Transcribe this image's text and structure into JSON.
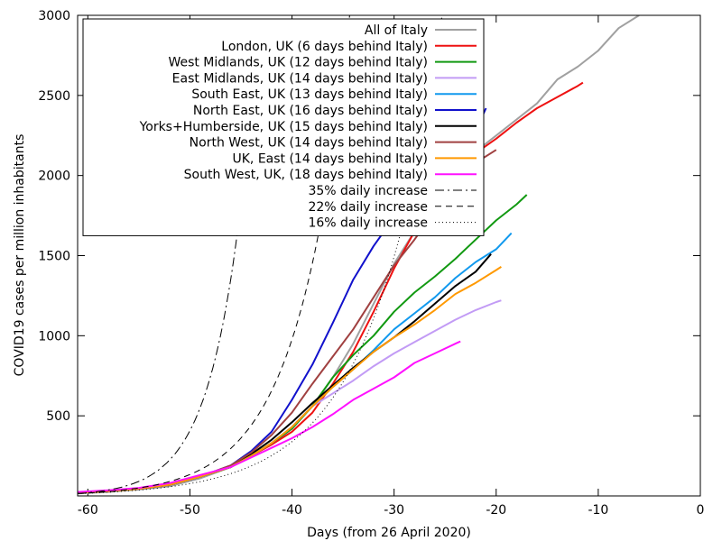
{
  "chart_data": {
    "type": "line",
    "title": "",
    "xlabel": "Days (from 26 April 2020)",
    "ylabel": "COVID19 cases per million inhabitants",
    "xlim": [
      -61,
      0
    ],
    "ylim": [
      0,
      3000
    ],
    "xticks": [
      -60,
      -50,
      -40,
      -30,
      -20,
      -10,
      0
    ],
    "yticks": [
      500,
      1000,
      1500,
      2000,
      2500,
      3000
    ],
    "grid": false,
    "legend_position": "top-left",
    "series": [
      {
        "name": "All of Italy",
        "color": "#a0a0a0",
        "dash": "solid",
        "x": [
          -61,
          -58,
          -55,
          -52,
          -49,
          -46,
          -44,
          -42,
          -40,
          -38,
          -36,
          -34,
          -32,
          -30,
          -28,
          -26,
          -24,
          -22,
          -20,
          -18,
          -16,
          -14,
          -12,
          -10,
          -8,
          -6
        ],
        "y": [
          15,
          25,
          40,
          60,
          110,
          180,
          250,
          320,
          420,
          560,
          740,
          950,
          1200,
          1450,
          1650,
          1850,
          2000,
          2150,
          2250,
          2350,
          2450,
          2600,
          2680,
          2780,
          2920,
          3000
        ]
      },
      {
        "name": "London, UK (6 days behind Italy)",
        "color": "#ee1111",
        "dash": "solid",
        "x": [
          -61,
          -58,
          -55,
          -52,
          -49,
          -46,
          -44,
          -42,
          -40,
          -38,
          -36,
          -34,
          -32,
          -30,
          -28,
          -26,
          -24,
          -22,
          -20,
          -18,
          -16,
          -14,
          -12,
          -11.5
        ],
        "y": [
          20,
          30,
          45,
          70,
          120,
          180,
          250,
          320,
          400,
          520,
          700,
          900,
          1150,
          1420,
          1650,
          1860,
          2020,
          2140,
          2230,
          2330,
          2420,
          2490,
          2560,
          2580
        ]
      },
      {
        "name": "West Midlands, UK (12 days behind Italy)",
        "color": "#119911",
        "dash": "solid",
        "x": [
          -61,
          -58,
          -55,
          -52,
          -49,
          -46,
          -44,
          -42,
          -40,
          -38,
          -36,
          -34,
          -32,
          -30,
          -28,
          -26,
          -24,
          -22,
          -20,
          -18,
          -17
        ],
        "y": [
          20,
          30,
          45,
          70,
          120,
          180,
          250,
          330,
          420,
          560,
          740,
          880,
          1000,
          1150,
          1270,
          1370,
          1480,
          1600,
          1720,
          1820,
          1880
        ]
      },
      {
        "name": "East Midlands, UK (14 days behind Italy)",
        "color": "#c29bf5",
        "dash": "solid",
        "x": [
          -61,
          -58,
          -55,
          -52,
          -49,
          -46,
          -44,
          -42,
          -40,
          -38,
          -36,
          -34,
          -32,
          -30,
          -28,
          -26,
          -24,
          -22,
          -20,
          -19.5
        ],
        "y": [
          20,
          30,
          45,
          70,
          120,
          180,
          250,
          330,
          430,
          560,
          640,
          720,
          810,
          890,
          960,
          1030,
          1100,
          1160,
          1210,
          1220
        ]
      },
      {
        "name": "South East, UK (13 days behind Italy)",
        "color": "#1199ee",
        "dash": "solid",
        "x": [
          -61,
          -58,
          -55,
          -52,
          -49,
          -46,
          -44,
          -42,
          -40,
          -38,
          -36,
          -34,
          -32,
          -30,
          -28,
          -26,
          -24,
          -22,
          -20,
          -18.5
        ],
        "y": [
          20,
          30,
          45,
          70,
          120,
          180,
          250,
          330,
          430,
          560,
          680,
          790,
          910,
          1040,
          1140,
          1240,
          1360,
          1460,
          1540,
          1640
        ]
      },
      {
        "name": "North East, UK (16 days behind Italy)",
        "color": "#1111cc",
        "dash": "solid",
        "x": [
          -61,
          -58,
          -55,
          -52,
          -49,
          -46,
          -44,
          -42,
          -40,
          -38,
          -36,
          -34,
          -32,
          -30,
          -28,
          -26,
          -24,
          -22,
          -21
        ],
        "y": [
          20,
          30,
          45,
          70,
          120,
          190,
          280,
          400,
          600,
          820,
          1080,
          1350,
          1560,
          1740,
          1880,
          2000,
          2140,
          2280,
          2420
        ]
      },
      {
        "name": "Yorks+Humberside, UK (15 days behind Italy)",
        "color": "#000000",
        "dash": "solid",
        "x": [
          -61,
          -58,
          -55,
          -52,
          -49,
          -46,
          -44,
          -42,
          -40,
          -38,
          -36,
          -34,
          -32,
          -30,
          -28,
          -26,
          -24,
          -22,
          -20.5
        ],
        "y": [
          20,
          30,
          45,
          70,
          120,
          180,
          260,
          350,
          460,
          580,
          690,
          800,
          900,
          990,
          1090,
          1200,
          1310,
          1400,
          1510
        ]
      },
      {
        "name": "North West, UK (14 days behind Italy)",
        "color": "#a04040",
        "dash": "solid",
        "x": [
          -61,
          -58,
          -55,
          -52,
          -49,
          -46,
          -44,
          -42,
          -40,
          -38,
          -36,
          -34,
          -32,
          -30,
          -28,
          -26,
          -24,
          -22,
          -20
        ],
        "y": [
          20,
          30,
          45,
          70,
          120,
          190,
          270,
          380,
          520,
          700,
          870,
          1040,
          1240,
          1440,
          1600,
          1780,
          1950,
          2080,
          2160
        ]
      },
      {
        "name": "UK, East (14 days behind Italy)",
        "color": "#ff9900",
        "dash": "solid",
        "x": [
          -61,
          -58,
          -55,
          -52,
          -49,
          -46,
          -44,
          -42,
          -40,
          -38,
          -36,
          -34,
          -32,
          -30,
          -28,
          -26,
          -24,
          -22,
          -20,
          -19.5
        ],
        "y": [
          20,
          30,
          45,
          70,
          120,
          180,
          250,
          330,
          430,
          560,
          680,
          790,
          900,
          990,
          1070,
          1160,
          1260,
          1330,
          1410,
          1430
        ]
      },
      {
        "name": "South West, UK, (18 days behind Italy)",
        "color": "#ff11ff",
        "dash": "solid",
        "x": [
          -61,
          -58,
          -55,
          -52,
          -49,
          -46,
          -44,
          -42,
          -40,
          -38,
          -36,
          -34,
          -32,
          -30,
          -28,
          -26,
          -24,
          -23.5
        ],
        "y": [
          25,
          35,
          50,
          80,
          130,
          180,
          240,
          300,
          360,
          430,
          510,
          600,
          670,
          740,
          830,
          890,
          950,
          965
        ]
      },
      {
        "name": "35% daily increase",
        "color": "#000000",
        "dash": "10,4,2,4",
        "growth_rate": 0.35,
        "x_start": -61,
        "y_start": 15
      },
      {
        "name": "22% daily increase",
        "color": "#000000",
        "dash": "7,5",
        "growth_rate": 0.22,
        "x_start": -61,
        "y_start": 15
      },
      {
        "name": "16% daily increase",
        "color": "#000000",
        "dash": "1,3",
        "growth_rate": 0.16,
        "x_start": -61,
        "y_start": 15
      }
    ]
  }
}
